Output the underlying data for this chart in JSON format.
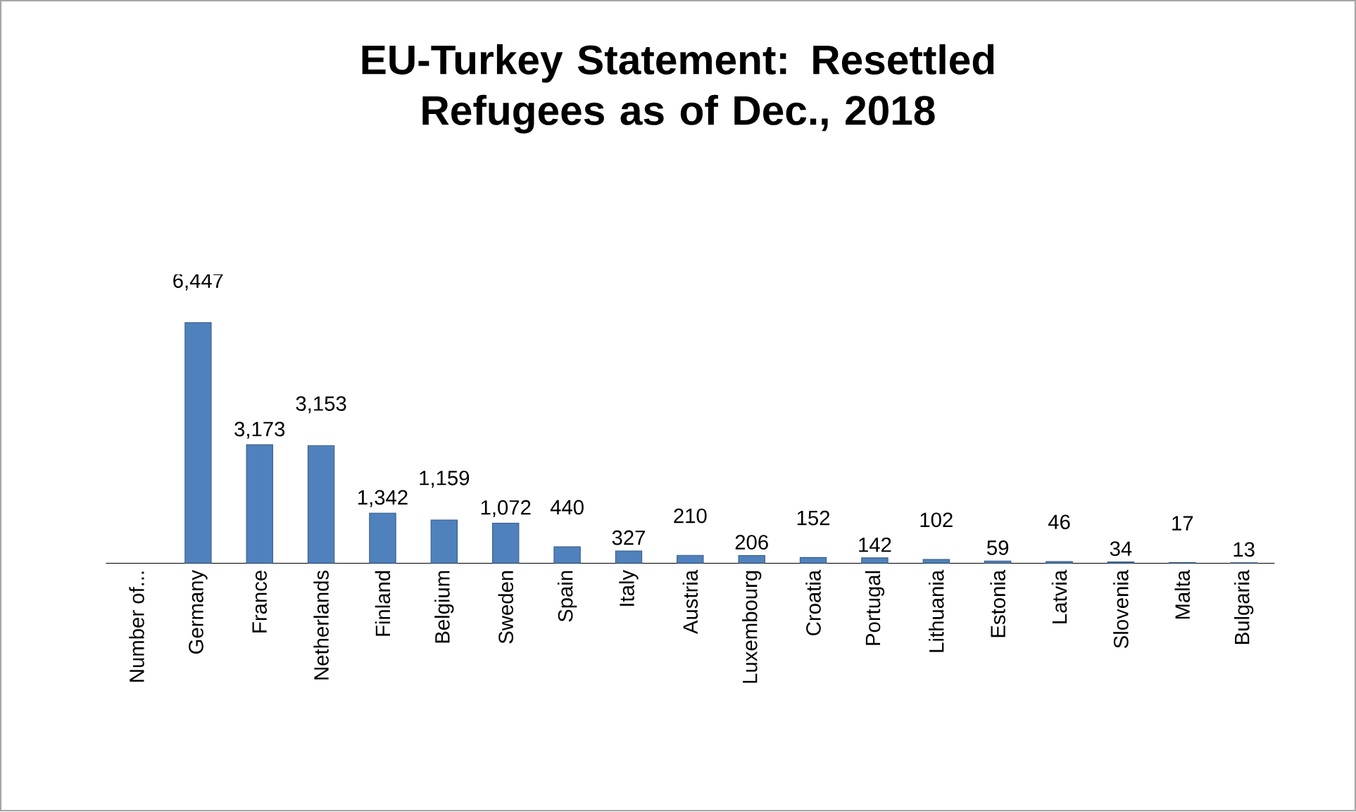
{
  "chart_data": {
    "type": "bar",
    "title": "EU-Turkey Statement: Resettled Refugees as of Dec., 2018",
    "categories": [
      "Number of...",
      "Germany",
      "France",
      "Netherlands",
      "Finland",
      "Belgium",
      "Sweden",
      "Spain",
      "Italy",
      "Austria",
      "Luxembourg",
      "Croatia",
      "Portugal",
      "Lithuania",
      "Estonia",
      "Latvia",
      "Slovenia",
      "Malta",
      "Bulgaria"
    ],
    "values": [
      null,
      6447,
      3173,
      3153,
      1342,
      1159,
      1072,
      440,
      327,
      210,
      206,
      152,
      142,
      102,
      59,
      46,
      34,
      17,
      13
    ],
    "value_labels": [
      null,
      "6,447",
      "3,173",
      "3,153",
      "1,342",
      "1,159",
      "1,072",
      "440",
      "327",
      "210",
      "206",
      "152",
      "142",
      "102",
      "59",
      "46",
      "34",
      "17",
      "13"
    ],
    "color": "#4f81bd"
  }
}
